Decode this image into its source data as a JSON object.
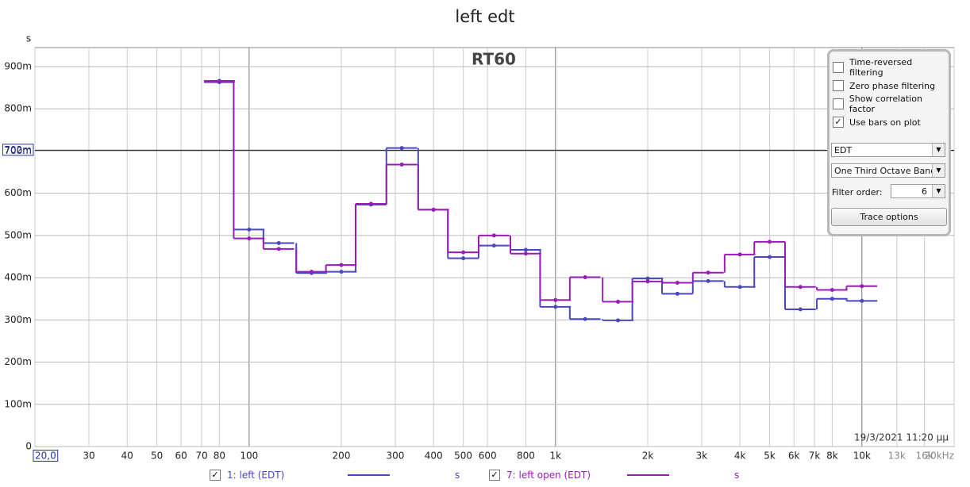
{
  "chart_data": {
    "type": "step",
    "title": "left edt",
    "overlay_label": "RT60",
    "ylabel": "s",
    "timestamp": "19/3/2021 11:20 μμ",
    "x": [
      80,
      100,
      125,
      160,
      200,
      250,
      315,
      400,
      500,
      630,
      800,
      1000,
      1250,
      1600,
      2000,
      2500,
      3150,
      4000,
      5000,
      6300,
      8000,
      10000
    ],
    "series": [
      {
        "name": "1: left (EDT)",
        "unit": "s",
        "color": "#4848c0",
        "values": [
          0.863,
          0.514,
          0.482,
          0.411,
          0.414,
          0.573,
          0.707,
          0.561,
          0.446,
          0.476,
          0.466,
          0.331,
          0.302,
          0.299,
          0.398,
          0.362,
          0.392,
          0.378,
          0.449,
          0.325,
          0.35,
          0.345
        ]
      },
      {
        "name": "7: left open (EDT)",
        "unit": "s",
        "color": "#9a1cb6",
        "values": [
          0.866,
          0.493,
          0.468,
          0.414,
          0.43,
          0.575,
          0.668,
          0.561,
          0.46,
          0.5,
          0.457,
          0.347,
          0.401,
          0.343,
          0.391,
          0.388,
          0.412,
          0.455,
          0.485,
          0.378,
          0.371,
          0.38
        ]
      }
    ],
    "log_x": true,
    "grid": true,
    "xlim": [
      20,
      20000
    ],
    "xticks": [
      {
        "value": 20,
        "label": "20,0"
      },
      30,
      40,
      50,
      60,
      70,
      80,
      100,
      200,
      300,
      400,
      500,
      600,
      800,
      {
        "value": 1000,
        "label": "1k"
      },
      {
        "value": 2000,
        "label": "2k"
      },
      {
        "value": 3000,
        "label": "3k"
      },
      {
        "value": 4000,
        "label": "4k"
      },
      {
        "value": 5000,
        "label": "5k"
      },
      {
        "value": 6000,
        "label": "6k"
      },
      {
        "value": 7000,
        "label": "7k"
      },
      {
        "value": 8000,
        "label": "8k"
      },
      {
        "value": 10000,
        "label": "10k"
      },
      {
        "value": 13000,
        "label": "13k"
      },
      {
        "value": 16000,
        "label": "16k"
      },
      {
        "value": 20000,
        "label": "20kHz"
      }
    ],
    "ylim": [
      0,
      0.945
    ],
    "yticks": [
      0,
      {
        "value": 0.1,
        "label": "100m"
      },
      {
        "value": 0.2,
        "label": "200m"
      },
      {
        "value": 0.3,
        "label": "300m"
      },
      {
        "value": 0.4,
        "label": "400m"
      },
      {
        "value": 0.5,
        "label": "500m"
      },
      {
        "value": 0.6,
        "label": "600m"
      },
      {
        "value": 0.7,
        "label": "700m"
      },
      {
        "value": 0.8,
        "label": "800m"
      },
      {
        "value": 0.9,
        "label": "900m"
      }
    ],
    "cursor": {
      "value": 0.702,
      "label": "702m"
    }
  },
  "controls": {
    "checkboxes": [
      {
        "label": "Time-reversed filtering",
        "checked": false
      },
      {
        "label": "Zero phase filtering",
        "checked": false
      },
      {
        "label": "Show correlation factor",
        "checked": false
      },
      {
        "label": "Use bars on plot",
        "checked": true
      }
    ],
    "measure": "EDT",
    "bands": "One Third Octave Bands",
    "filter_order_label": "Filter order:",
    "filter_order": 6,
    "button": "Trace options"
  }
}
